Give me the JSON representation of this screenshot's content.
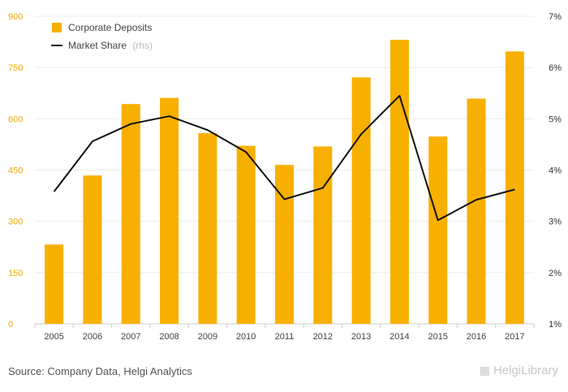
{
  "chart_data": {
    "type": "bar",
    "categories": [
      "2005",
      "2006",
      "2007",
      "2008",
      "2009",
      "2010",
      "2011",
      "2012",
      "2013",
      "2014",
      "2015",
      "2016",
      "2017"
    ],
    "series": [
      {
        "name": "Corporate Deposits",
        "type": "bar",
        "axis": "left",
        "values": [
          232,
          434,
          643,
          661,
          558,
          521,
          465,
          519,
          721,
          831,
          548,
          659,
          797
        ]
      },
      {
        "name": "Market Share",
        "name_suffix": "(rhs)",
        "type": "line",
        "axis": "right",
        "values": [
          3.58,
          4.56,
          4.9,
          5.05,
          4.78,
          4.35,
          3.43,
          3.65,
          4.7,
          5.45,
          3.02,
          3.42,
          3.62
        ]
      }
    ],
    "y_left": {
      "min": 0,
      "max": 900,
      "ticks": [
        "0",
        "150",
        "300",
        "450",
        "600",
        "750",
        "900"
      ]
    },
    "y_right": {
      "min": 1,
      "max": 7,
      "ticks": [
        "1%",
        "2%",
        "3%",
        "4%",
        "5%",
        "6%",
        "7%"
      ]
    },
    "grid": true,
    "legend_position": "top-left",
    "colors": {
      "bar": "#f8b000",
      "line": "#111111",
      "left_axis": "#f2a900"
    }
  },
  "footer": {
    "source": "Source: Company Data, Helgi Analytics",
    "logo_text": "HelgiLibrary"
  }
}
